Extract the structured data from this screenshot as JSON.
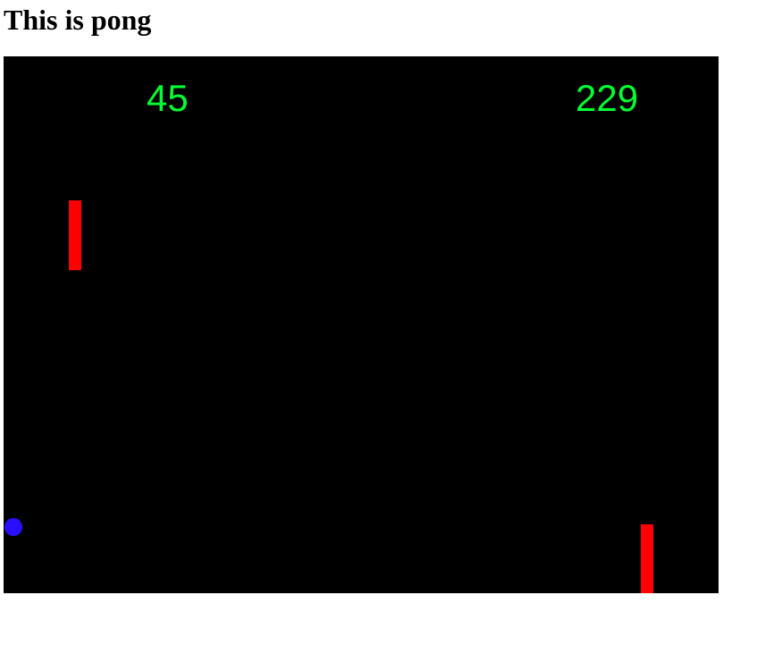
{
  "page": {
    "title": "This is pong"
  },
  "game": {
    "scores": {
      "left": "45",
      "right": "229"
    },
    "colors": {
      "background": "#000000",
      "score": "#00ff33",
      "paddle": "#ff0000",
      "ball": "#2a0fff"
    }
  }
}
